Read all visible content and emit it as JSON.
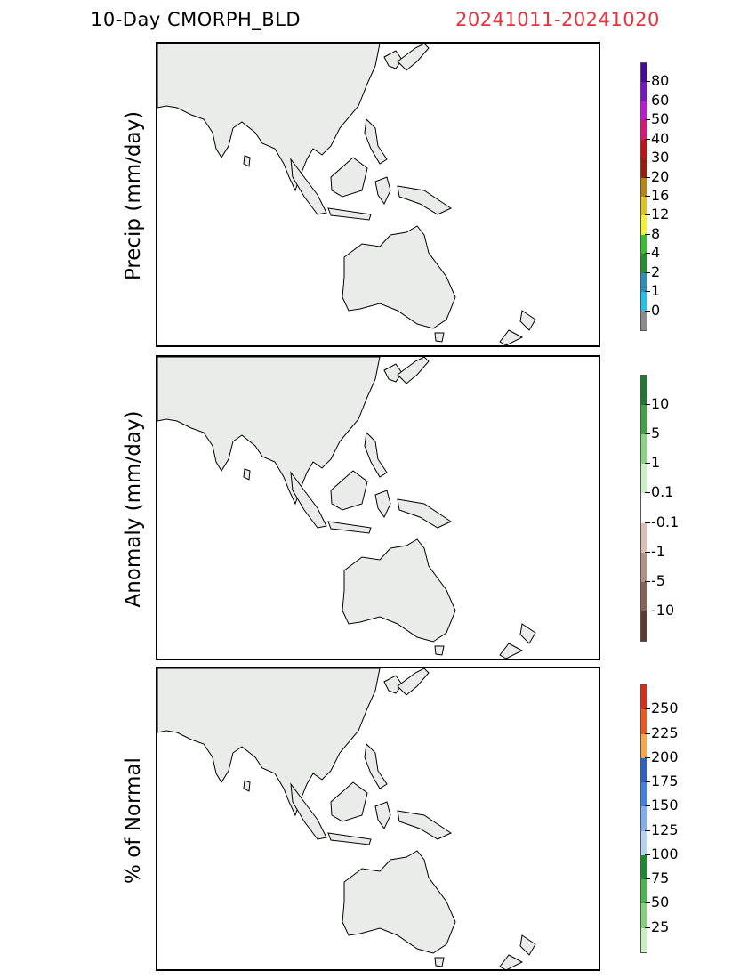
{
  "header": {
    "product": "10-Day CMORPH_BLD",
    "dates": "20241011-20241020"
  },
  "panels": [
    {
      "ylabel": "Precip (mm/day)",
      "colorbar": {
        "labels": [
          "80",
          "60",
          "50",
          "40",
          "30",
          "20",
          "16",
          "12",
          "8",
          "4",
          "2",
          "1",
          "0"
        ],
        "colors": [
          "#4b0a9e",
          "#7d12c8",
          "#c414d8",
          "#e0127a",
          "#c81010",
          "#9b1c08",
          "#b9850c",
          "#e0c41a",
          "#f4f22a",
          "#34c22b",
          "#23912a",
          "#2b8fbd",
          "#1fc4ec",
          "#8c8c8c"
        ]
      }
    },
    {
      "ylabel": "Anomaly (mm/day)",
      "colorbar": {
        "labels": [
          "10",
          "5",
          "1",
          "0.1",
          "-0.1",
          "-1",
          "-5",
          "-10"
        ],
        "colors": [
          "#1e7a2e",
          "#3ea640",
          "#86d67c",
          "#c8f0c0",
          "#ffffff",
          "#dcbfb4",
          "#b69086",
          "#8a6254",
          "#5e3a32"
        ]
      }
    },
    {
      "ylabel": "% of Normal",
      "colorbar": {
        "labels": [
          "250",
          "225",
          "200",
          "175",
          "150",
          "125",
          "100",
          "75",
          "50",
          "25"
        ],
        "colors": [
          "#e12a14",
          "#f2571a",
          "#f7a642",
          "#2a62c6",
          "#3d84e0",
          "#7eaff0",
          "#b5d3f7",
          "#1b8c2c",
          "#48b848",
          "#80d676",
          "#c6f0bc"
        ]
      }
    }
  ]
}
